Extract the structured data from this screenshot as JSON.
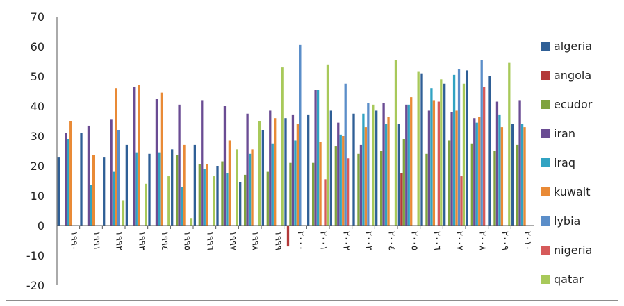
{
  "chart_data": {
    "type": "bar",
    "title": "",
    "xlabel": "",
    "ylabel": "",
    "ylim": [
      -20,
      70
    ],
    "yticks": [
      70,
      60,
      50,
      40,
      30,
      20,
      10,
      0,
      -10,
      -20
    ],
    "grid": false,
    "legend_position": "right",
    "categories": [
      "١٩٩٠",
      "١٩٩١",
      "١٩٩٢",
      "١٩٩٣",
      "١٩٩٤",
      "١٩٩٥",
      "١٩٩٦",
      "١٩٩٧",
      "١٩٩٨",
      "١٩٩٩",
      "٢٠٠٠",
      "٢٠٠١",
      "٢٠٠٢",
      "٢٠٠٣",
      "٢٠٠٤",
      "٢٠٠٥",
      "٢٠٠٦",
      "٢٠٠٧",
      "٢٠٠٨",
      "٢٠٠٩",
      "٢٠١٠"
    ],
    "series": [
      {
        "name": "algeria",
        "color": "#2f5f96",
        "values": [
          23,
          31,
          23,
          27,
          24,
          25.5,
          27,
          20,
          14.5,
          32,
          36,
          37,
          38.5,
          37.5,
          38.5,
          34,
          51,
          47.5,
          52,
          50,
          34
        ]
      },
      {
        "name": "angola",
        "color": "#b33a3a",
        "values": [
          0,
          0,
          0,
          0,
          0,
          0,
          0,
          0,
          0,
          0,
          -7,
          0,
          0,
          0,
          0,
          17.5,
          0,
          0,
          0,
          0,
          0
        ]
      },
      {
        "name": "ecudor",
        "color": "#7fa33f",
        "values": [
          0,
          0,
          0,
          0,
          0,
          23.5,
          20.5,
          21.5,
          17,
          18,
          21,
          21,
          26.5,
          24,
          25,
          29,
          24,
          28.5,
          27.5,
          25,
          27
        ]
      },
      {
        "name": "iran",
        "color": "#6a4c93",
        "values": [
          31,
          33.5,
          35.5,
          46.5,
          42.5,
          40.5,
          42,
          40,
          37.5,
          38.5,
          37,
          45.5,
          34.5,
          27,
          41,
          40.5,
          38.5,
          38,
          36,
          41.5,
          42
        ]
      },
      {
        "name": "iraq",
        "color": "#31a3c2",
        "values": [
          29,
          13.5,
          18,
          24.5,
          24.5,
          13,
          19,
          17.5,
          24,
          27.5,
          28.5,
          45.5,
          30.5,
          37.5,
          34,
          40.5,
          46,
          50.5,
          34.5,
          37,
          34
        ]
      },
      {
        "name": "kuwait",
        "color": "#e98a36",
        "values": [
          35,
          23.5,
          46,
          47,
          44.5,
          27,
          20.5,
          28.5,
          25.5,
          36,
          34,
          28,
          30,
          33,
          36.5,
          43,
          42,
          38.5,
          36.5,
          33,
          33
        ]
      },
      {
        "name": "lybia",
        "color": "#5b8ec9",
        "values": [
          0,
          0,
          32,
          0,
          0,
          0,
          0,
          0,
          0,
          0,
          60.5,
          0,
          47.5,
          41,
          0,
          0,
          0,
          52.5,
          55.5,
          0,
          0
        ]
      },
      {
        "name": "nigeria",
        "color": "#d65a5a",
        "values": [
          0,
          0,
          0,
          0,
          0,
          0,
          0,
          0,
          0,
          0,
          0,
          15.5,
          22.5,
          0,
          0,
          0,
          41.5,
          16.5,
          46.5,
          0,
          0
        ]
      },
      {
        "name": "qatar",
        "color": "#a8c95a",
        "values": [
          0,
          0,
          8.5,
          14,
          16.5,
          2.5,
          16.5,
          25.5,
          35,
          53,
          0,
          54,
          0,
          40.5,
          55.5,
          51.5,
          49,
          47.5,
          0,
          54.5,
          0
        ]
      }
    ]
  }
}
